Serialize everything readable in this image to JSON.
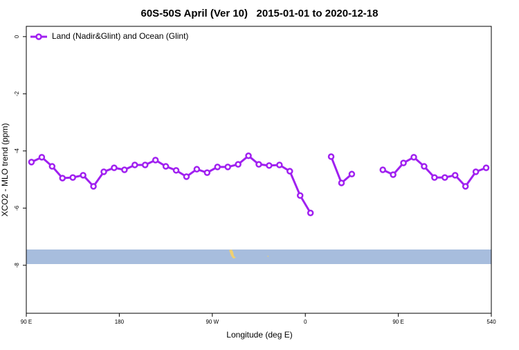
{
  "chart_data": {
    "type": "line",
    "title": "60S-50S April (Ver 10)   2015-01-01 to 2020-12-18",
    "xlabel": "Longitude (deg E)",
    "ylabel": "XCO2 - MLO trend (ppm)",
    "x": [
      95,
      105,
      115,
      125,
      135,
      145,
      155,
      165,
      175,
      185,
      195,
      205,
      215,
      225,
      235,
      245,
      255,
      265,
      275,
      285,
      295,
      305,
      315,
      325,
      335,
      345,
      355,
      365,
      375,
      385,
      395,
      405,
      415,
      425,
      435,
      445,
      455,
      465,
      475,
      485,
      495,
      505,
      515,
      525,
      535
    ],
    "series": [
      {
        "name": "Land (Nadir&Glint) and Ocean (Glint)",
        "color": "#a020f0",
        "values": [
          -4.39,
          -4.22,
          -4.54,
          -4.95,
          -4.93,
          -4.85,
          -5.24,
          -4.73,
          -4.59,
          -4.66,
          -4.49,
          -4.49,
          -4.32,
          -4.54,
          -4.68,
          -4.9,
          -4.64,
          -4.76,
          -4.56,
          -4.56,
          -4.47,
          -4.17,
          -4.47,
          -4.51,
          -4.49,
          -4.71,
          -5.56,
          -6.17,
          null,
          -4.2,
          -5.12,
          -4.81,
          null,
          null,
          -4.66,
          -4.83,
          -4.42,
          -4.22,
          -4.54,
          -4.93,
          -4.93,
          -4.85,
          -5.24,
          -4.73,
          -4.59
        ]
      }
    ],
    "xlim": [
      90,
      540
    ],
    "xticks": [
      {
        "value": 90,
        "label": "90 E"
      },
      180,
      {
        "value": 270,
        "label": "90 W"
      },
      {
        "value": 360,
        "label": "0"
      },
      {
        "value": 450,
        "label": "90 E"
      },
      540
    ],
    "ylim": [
      -9.68,
      0.36
    ],
    "yticks": [
      0,
      -2,
      -4,
      -6,
      -8
    ],
    "legend": "top-left"
  }
}
